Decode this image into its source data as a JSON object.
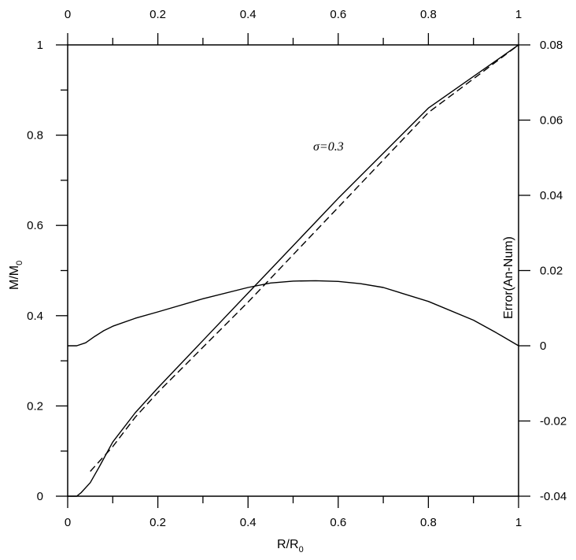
{
  "chart_data": {
    "type": "line",
    "title": "",
    "xlabel": "R/R",
    "xlabel_sub": "0",
    "ylabel": "M/M",
    "ylabel_sub": "0",
    "y2label": "Error(An-Num)",
    "xlim": [
      0,
      1
    ],
    "ylim": [
      0,
      1
    ],
    "y2lim": [
      -0.04,
      0.08
    ],
    "xticks": [
      "0",
      "0.2",
      "0.4",
      "0.6",
      "0.8",
      "1"
    ],
    "xticks_top": [
      "0",
      "0.2",
      "0.4",
      "0.6",
      "0.8",
      "1"
    ],
    "yticks": [
      "0",
      "0.2",
      "0.4",
      "0.6",
      "0.8",
      "1"
    ],
    "y2ticks": [
      "-0.04",
      "-0.02",
      "0",
      "0.02",
      "0.04",
      "0.06",
      "0.08"
    ],
    "grid": false,
    "annotation": "σ=0.3",
    "series": [
      {
        "style": "solid",
        "axis": "left",
        "x": [
          0,
          0.01,
          0.02,
          0.03,
          0.05,
          0.07,
          0.1,
          0.15,
          0.2,
          0.3,
          0.4,
          0.5,
          0.6,
          0.7,
          0.8,
          0.9,
          1.0
        ],
        "y": [
          0.0,
          0.0,
          0.0,
          0.008,
          0.03,
          0.065,
          0.12,
          0.185,
          0.24,
          0.345,
          0.45,
          0.555,
          0.66,
          0.76,
          0.86,
          0.93,
          1.0
        ]
      },
      {
        "style": "dashed",
        "axis": "left",
        "x": [
          0.05,
          0.1,
          0.15,
          0.2,
          0.3,
          0.4,
          0.5,
          0.6,
          0.7,
          0.8,
          0.9,
          1.0
        ],
        "y": [
          0.055,
          0.11,
          0.175,
          0.23,
          0.33,
          0.43,
          0.535,
          0.64,
          0.745,
          0.85,
          0.925,
          1.0
        ]
      },
      {
        "style": "solid",
        "axis": "right",
        "x": [
          0,
          0.02,
          0.04,
          0.06,
          0.08,
          0.1,
          0.15,
          0.2,
          0.3,
          0.4,
          0.45,
          0.5,
          0.55,
          0.6,
          0.65,
          0.7,
          0.8,
          0.9,
          0.95,
          1.0
        ],
        "y": [
          0.0,
          0.0,
          0.0008,
          0.0025,
          0.004,
          0.0052,
          0.0073,
          0.009,
          0.0125,
          0.0155,
          0.0167,
          0.0172,
          0.0173,
          0.0171,
          0.0165,
          0.0155,
          0.0118,
          0.0068,
          0.0035,
          0.0
        ]
      }
    ]
  }
}
